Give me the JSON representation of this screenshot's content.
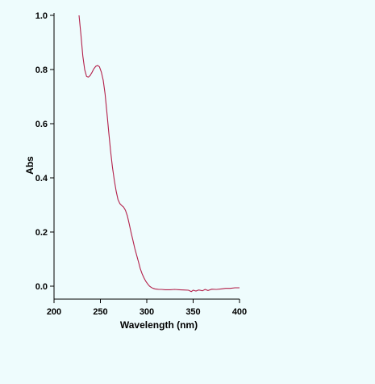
{
  "chart_data": {
    "type": "line",
    "title": "",
    "xlabel": "Wavelength (nm)",
    "ylabel": "Abs",
    "xlim": [
      200,
      400
    ],
    "ylim": [
      -0.05,
      1.0
    ],
    "xticks": [
      200,
      250,
      300,
      350,
      400
    ],
    "yticks": [
      0.0,
      0.2,
      0.4,
      0.6,
      0.8,
      1.0
    ],
    "xtick_labels": [
      "200",
      "250",
      "300",
      "350",
      "400"
    ],
    "ytick_labels": [
      "0.0",
      "0.2",
      "0.4",
      "0.6",
      "0.8",
      "1.0"
    ],
    "grid": false,
    "line_color": "#b3204a",
    "background_color": "#eefcfd",
    "series": [
      {
        "x": [
          227,
          229,
          231,
          233,
          235,
          237,
          239,
          241,
          243,
          245,
          247,
          249,
          251,
          253,
          255,
          257,
          259,
          261,
          263,
          265,
          267,
          269,
          271,
          273,
          275,
          277,
          279,
          281,
          283,
          285,
          287,
          289,
          291,
          293,
          295,
          297,
          299,
          301,
          303,
          305,
          307,
          309,
          311,
          313,
          316,
          320,
          325,
          330,
          335,
          340,
          345,
          348,
          350,
          353,
          356,
          360,
          363,
          366,
          370,
          375,
          380,
          385,
          390,
          395,
          400
        ],
        "y": [
          1.0,
          0.93,
          0.85,
          0.8,
          0.775,
          0.772,
          0.778,
          0.79,
          0.803,
          0.812,
          0.815,
          0.81,
          0.79,
          0.76,
          0.71,
          0.64,
          0.57,
          0.5,
          0.44,
          0.39,
          0.35,
          0.32,
          0.305,
          0.298,
          0.292,
          0.28,
          0.26,
          0.23,
          0.2,
          0.17,
          0.14,
          0.115,
          0.09,
          0.065,
          0.045,
          0.03,
          0.018,
          0.008,
          0.0,
          -0.005,
          -0.008,
          -0.01,
          -0.011,
          -0.012,
          -0.012,
          -0.013,
          -0.013,
          -0.012,
          -0.013,
          -0.014,
          -0.015,
          -0.02,
          -0.015,
          -0.018,
          -0.014,
          -0.017,
          -0.012,
          -0.016,
          -0.011,
          -0.012,
          -0.01,
          -0.008,
          -0.008,
          -0.006,
          -0.006
        ]
      }
    ]
  }
}
